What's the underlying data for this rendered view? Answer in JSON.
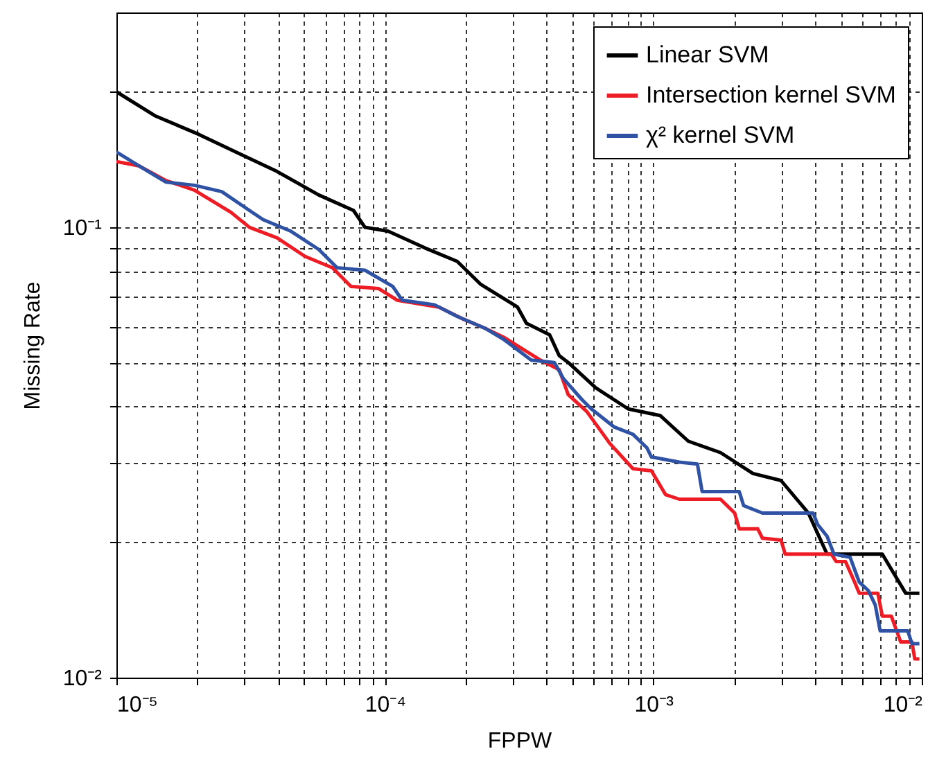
{
  "chart_data": {
    "type": "line",
    "xlabel": "FPPW",
    "ylabel": "Missing Rate",
    "log": "xy",
    "grid": true,
    "legend": "top right",
    "xlim": [
      1e-05,
      0.01
    ],
    "ylim": [
      0.01,
      0.3
    ],
    "xticks": [
      {
        "value": 1e-05,
        "label": "10⁻⁵"
      },
      {
        "value": 2e-05,
        "label": null
      },
      {
        "value": 3e-05,
        "label": null
      },
      {
        "value": 4e-05,
        "label": null
      },
      {
        "value": 5e-05,
        "label": null
      },
      {
        "value": 6e-05,
        "label": null
      },
      {
        "value": 7e-05,
        "label": null
      },
      {
        "value": 8e-05,
        "label": null
      },
      {
        "value": 9e-05,
        "label": null
      },
      {
        "value": 0.0001,
        "label": "10⁻⁴"
      },
      {
        "value": 0.0002,
        "label": null
      },
      {
        "value": 0.0003,
        "label": null
      },
      {
        "value": 0.0004,
        "label": null
      },
      {
        "value": 0.0005,
        "label": null
      },
      {
        "value": 0.0006,
        "label": null
      },
      {
        "value": 0.0007,
        "label": null
      },
      {
        "value": 0.0008,
        "label": null
      },
      {
        "value": 0.0009,
        "label": null
      },
      {
        "value": 0.001,
        "label": "10⁻³"
      },
      {
        "value": 0.002,
        "label": null
      },
      {
        "value": 0.003,
        "label": null
      },
      {
        "value": 0.004,
        "label": null
      },
      {
        "value": 0.005,
        "label": null
      },
      {
        "value": 0.006,
        "label": null
      },
      {
        "value": 0.007,
        "label": null
      },
      {
        "value": 0.008,
        "label": null
      },
      {
        "value": 0.009,
        "label": null
      },
      {
        "value": 0.01,
        "label": "10⁻²"
      }
    ],
    "yticks": [
      {
        "value": 0.01,
        "label": "10⁻²"
      },
      {
        "value": 0.02,
        "label": null
      },
      {
        "value": 0.03,
        "label": null
      },
      {
        "value": 0.04,
        "label": null
      },
      {
        "value": 0.05,
        "label": null
      },
      {
        "value": 0.06,
        "label": null
      },
      {
        "value": 0.07,
        "label": null
      },
      {
        "value": 0.08,
        "label": null
      },
      {
        "value": 0.09,
        "label": null
      },
      {
        "value": 0.1,
        "label": "10⁻¹"
      },
      {
        "value": 0.2,
        "label": null
      }
    ],
    "series": [
      {
        "name": "Linear SVM",
        "color": "#000000",
        "x": [
          1e-05,
          1.39e-05,
          2.02e-05,
          2.78e-05,
          3.97e-05,
          5.67e-05,
          7.64e-05,
          8.43e-05,
          0.000103,
          0.000141,
          0.000186,
          0.000227,
          0.000312,
          0.000337,
          0.000411,
          0.000446,
          0.000482,
          0.000611,
          0.000807,
          0.00106,
          0.00135,
          0.00178,
          0.00235,
          0.00299,
          0.00378,
          0.00444,
          0.00713,
          0.00871,
          0.0098
        ],
        "values": [
          0.2,
          0.177,
          0.161,
          0.147,
          0.133,
          0.118,
          0.109,
          0.1,
          0.098,
          0.09,
          0.084,
          0.0748,
          0.0665,
          0.0612,
          0.0577,
          0.0519,
          0.0501,
          0.044,
          0.0395,
          0.0382,
          0.0335,
          0.0316,
          0.0284,
          0.0274,
          0.0232,
          0.0188,
          0.0188,
          0.0154,
          0.0154
        ]
      },
      {
        "name": "Intersection kernel SVM",
        "color": "#ee1c25",
        "x": [
          1e-05,
          1.21e-05,
          1.53e-05,
          1.95e-05,
          2.67e-05,
          3.13e-05,
          3.97e-05,
          5.04e-05,
          6.38e-05,
          7.48e-05,
          9.49e-05,
          0.000111,
          0.000159,
          0.000194,
          0.000236,
          0.000277,
          0.00038,
          0.000446,
          0.000482,
          0.000565,
          0.000689,
          0.00084,
          0.000984,
          0.00111,
          0.00125,
          0.00178,
          0.00201,
          0.00209,
          0.00245,
          0.00255,
          0.00299,
          0.0031,
          0.00461,
          0.0048,
          0.0052,
          0.00562,
          0.00585,
          0.00686,
          0.00713,
          0.0077,
          0.00835,
          0.00919,
          0.00942,
          0.0098
        ],
        "values": [
          0.14,
          0.137,
          0.127,
          0.121,
          0.108,
          0.1,
          0.0947,
          0.0862,
          0.0813,
          0.0739,
          0.0731,
          0.0689,
          0.0665,
          0.0627,
          0.0597,
          0.057,
          0.0507,
          0.0483,
          0.0425,
          0.039,
          0.0331,
          0.0291,
          0.0288,
          0.0255,
          0.0249,
          0.0249,
          0.0232,
          0.0214,
          0.0214,
          0.0204,
          0.0202,
          0.0188,
          0.0188,
          0.0181,
          0.0181,
          0.0163,
          0.0154,
          0.0154,
          0.0137,
          0.0137,
          0.012,
          0.012,
          0.011,
          0.011
        ]
      },
      {
        "name": "χ² kernel SVM",
        "color": "#2f52a4",
        "x": [
          1e-05,
          1.21e-05,
          1.53e-05,
          1.95e-05,
          2.47e-05,
          3.13e-05,
          3.52e-05,
          4.47e-05,
          5.67e-05,
          6.64e-05,
          8.43e-05,
          0.000107,
          0.000116,
          0.000153,
          0.000186,
          0.000236,
          0.000277,
          0.000351,
          0.000428,
          0.000463,
          0.000543,
          0.000588,
          0.000716,
          0.00084,
          0.000946,
          0.000984,
          0.00125,
          0.00146,
          0.00152,
          0.00209,
          0.00217,
          0.00255,
          0.00394,
          0.00409,
          0.00444,
          0.00471,
          0.00541,
          0.00585,
          0.00633,
          0.00671,
          0.007,
          0.00887,
          0.00919,
          0.0098
        ],
        "values": [
          0.147,
          0.137,
          0.126,
          0.124,
          0.12,
          0.109,
          0.104,
          0.098,
          0.0893,
          0.0813,
          0.0803,
          0.0739,
          0.0689,
          0.0673,
          0.0634,
          0.0597,
          0.0564,
          0.0507,
          0.0501,
          0.0461,
          0.0414,
          0.0395,
          0.036,
          0.0347,
          0.0324,
          0.0309,
          0.0301,
          0.0298,
          0.0259,
          0.0259,
          0.0241,
          0.0232,
          0.0232,
          0.0219,
          0.0206,
          0.0188,
          0.0185,
          0.0163,
          0.0156,
          0.0145,
          0.0127,
          0.0127,
          0.0119,
          0.0119
        ]
      }
    ]
  }
}
